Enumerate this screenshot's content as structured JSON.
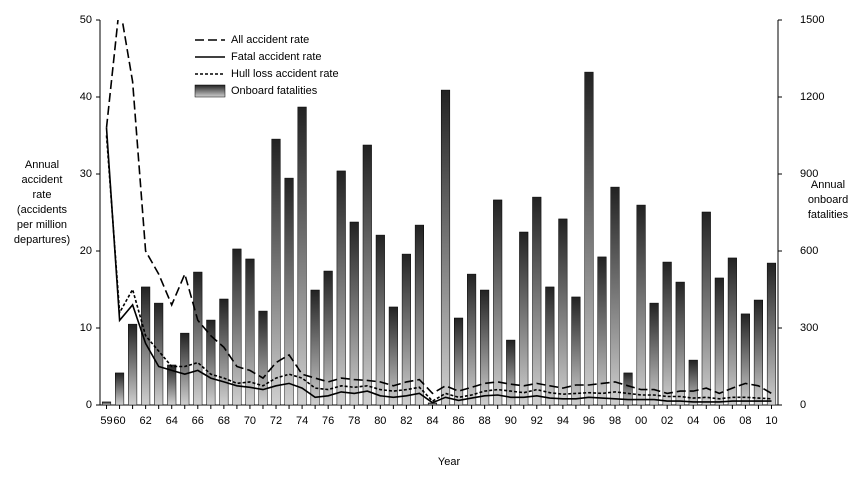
{
  "chart_data": {
    "type": "combo",
    "x_label": "Year",
    "y_label": [
      "Annual",
      "accident",
      "rate",
      "(accidents",
      "per million",
      "departures)"
    ],
    "y2_label": [
      "Annual",
      "onboard",
      "fatalities"
    ],
    "categories": [
      "59",
      "60",
      null,
      "62",
      null,
      "64",
      null,
      "66",
      null,
      "68",
      null,
      "70",
      null,
      "72",
      null,
      "74",
      null,
      "76",
      null,
      "78",
      null,
      "80",
      null,
      "82",
      null,
      "84",
      null,
      "86",
      null,
      "88",
      null,
      "90",
      null,
      "92",
      null,
      "94",
      null,
      "96",
      null,
      "98",
      null,
      "00",
      null,
      "02",
      null,
      "04",
      null,
      "06",
      null,
      "08",
      null,
      "10"
    ],
    "ylim": [
      0,
      50
    ],
    "yticks": [
      0,
      10,
      20,
      30,
      40,
      50
    ],
    "y2lim": [
      0,
      1500
    ],
    "y2ticks": [
      0,
      300,
      600,
      900,
      1200,
      1500
    ],
    "legend": "top-left",
    "series": [
      {
        "name": "All accident rate",
        "type": "line",
        "dash": "long",
        "color": "#000",
        "values": [
          36,
          52,
          42,
          20,
          17,
          13,
          17,
          11,
          9,
          7.5,
          5,
          4.5,
          3.5,
          5.5,
          6.5,
          4,
          3.5,
          3,
          3.5,
          3.3,
          3.2,
          3,
          2.5,
          3,
          3.3,
          1.5,
          2.5,
          1.8,
          2.3,
          2.8,
          3,
          2.7,
          2.5,
          2.8,
          2.5,
          2.2,
          2.6,
          2.6,
          2.8,
          3,
          2.5,
          2,
          2,
          1.5,
          1.8,
          1.8,
          2.2,
          1.5,
          2.2,
          2.8,
          2.5,
          1.5
        ]
      },
      {
        "name": "Fatal accident rate",
        "type": "line",
        "dash": "solid",
        "color": "#000",
        "values": [
          36,
          11,
          13,
          8,
          5,
          4.5,
          4,
          4.5,
          3.5,
          3,
          2.5,
          2.3,
          2,
          2.5,
          2.8,
          2.2,
          1,
          1.2,
          1.7,
          1.5,
          1.8,
          1.2,
          1,
          1.2,
          1.5,
          0.3,
          1,
          0.6,
          0.9,
          1.2,
          1.3,
          1,
          1,
          1.2,
          0.9,
          0.8,
          0.8,
          1,
          0.9,
          0.8,
          0.7,
          0.7,
          0.7,
          0.5,
          0.5,
          0.4,
          0.4,
          0.4,
          0.5,
          0.5,
          0.5,
          0.5
        ]
      },
      {
        "name": "Hull loss accident rate",
        "type": "line",
        "dash": "short",
        "color": "#000",
        "values": [
          35,
          12,
          15,
          9,
          7,
          5,
          5,
          5.5,
          4,
          3.5,
          2.8,
          3,
          2.5,
          3.5,
          4,
          3.5,
          2.2,
          2,
          2.5,
          2.3,
          2.5,
          2,
          1.8,
          2,
          2.3,
          0.5,
          1.5,
          1,
          1.3,
          1.8,
          2,
          1.8,
          1.6,
          2,
          1.6,
          1.4,
          1.5,
          1.6,
          1.5,
          1.7,
          1.5,
          1.3,
          1.3,
          1.1,
          1.1,
          0.9,
          1,
          0.8,
          1,
          1,
          0.9,
          0.8
        ]
      },
      {
        "name": "Onboard fatalities",
        "type": "bar",
        "axis": "y2",
        "color": "#555",
        "values": [
          12,
          125,
          315,
          460,
          397,
          156,
          280,
          518,
          331,
          413,
          608,
          569,
          366,
          1036,
          884,
          1161,
          448,
          522,
          912,
          713,
          1013,
          662,
          382,
          588,
          701,
          8,
          1227,
          339,
          510,
          448,
          799,
          253,
          674,
          810,
          460,
          725,
          421,
          1297,
          577,
          849,
          125,
          779,
          397,
          557,
          479,
          175,
          752,
          495,
          573,
          355,
          409,
          553
        ]
      }
    ]
  }
}
